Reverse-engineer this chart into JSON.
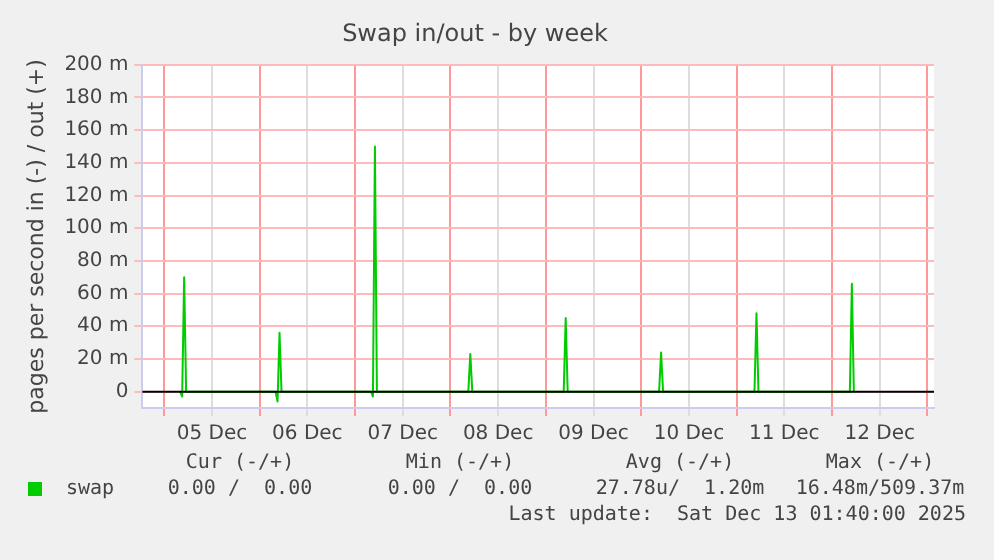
{
  "chart_data": {
    "type": "line",
    "title": "Swap in/out - by week",
    "ylabel": "pages per second in (-) / out (+)",
    "xlim": [
      "2025-12-04T18:30",
      "2025-12-13T01:40"
    ],
    "xticks": [
      {
        "value": "2025-12-05T00:00",
        "label": null
      },
      {
        "value": "2025-12-05T12:00",
        "label": "05 Dec"
      },
      {
        "value": "2025-12-06T00:00",
        "label": null
      },
      {
        "value": "2025-12-06T12:00",
        "label": "06 Dec"
      },
      {
        "value": "2025-12-07T00:00",
        "label": null
      },
      {
        "value": "2025-12-07T12:00",
        "label": "07 Dec"
      },
      {
        "value": "2025-12-08T00:00",
        "label": null
      },
      {
        "value": "2025-12-08T12:00",
        "label": "08 Dec"
      },
      {
        "value": "2025-12-09T00:00",
        "label": null
      },
      {
        "value": "2025-12-09T12:00",
        "label": "09 Dec"
      },
      {
        "value": "2025-12-10T00:00",
        "label": null
      },
      {
        "value": "2025-12-10T12:00",
        "label": "10 Dec"
      },
      {
        "value": "2025-12-11T00:00",
        "label": null
      },
      {
        "value": "2025-12-11T12:00",
        "label": "11 Dec"
      },
      {
        "value": "2025-12-12T00:00",
        "label": null
      },
      {
        "value": "2025-12-12T12:00",
        "label": "12 Dec"
      },
      {
        "value": "2025-12-13T00:00",
        "label": null
      }
    ],
    "ylim": [
      -10,
      200
    ],
    "yticks": [
      0,
      {
        "value": 20,
        "label": "20 m"
      },
      {
        "value": 40,
        "label": "40 m"
      },
      {
        "value": 60,
        "label": "60 m"
      },
      {
        "value": 80,
        "label": "80 m"
      },
      {
        "value": 100,
        "label": "100 m"
      },
      {
        "value": 120,
        "label": "120 m"
      },
      {
        "value": 140,
        "label": "140 m"
      },
      {
        "value": 160,
        "label": "160 m"
      },
      {
        "value": 180,
        "label": "180 m"
      },
      {
        "value": 200,
        "label": "200 m"
      }
    ],
    "grid": true,
    "legend": "bottom left",
    "marker": "none",
    "line_style": "solid",
    "ref_lines": [
      {
        "axis": "y",
        "value": 0,
        "color": "#000000"
      }
    ],
    "series": [
      {
        "name": "swap",
        "color": "#00cc00",
        "x": [
          "2025-12-05T04:00",
          "2025-12-05T04:30",
          "2025-12-05T05:00",
          "2025-12-05T05:30",
          "2025-12-06T04:00",
          "2025-12-06T04:30",
          "2025-12-06T05:00",
          "2025-12-06T05:30",
          "2025-12-07T04:00",
          "2025-12-07T04:30",
          "2025-12-07T05:00",
          "2025-12-07T05:30",
          "2025-12-08T04:30",
          "2025-12-08T05:00",
          "2025-12-08T05:30",
          "2025-12-09T04:30",
          "2025-12-09T05:00",
          "2025-12-09T05:30",
          "2025-12-10T04:30",
          "2025-12-10T05:00",
          "2025-12-10T05:30",
          "2025-12-11T04:30",
          "2025-12-11T05:00",
          "2025-12-11T05:30",
          "2025-12-12T04:30",
          "2025-12-12T05:00",
          "2025-12-12T05:30"
        ],
        "values": [
          0,
          -3,
          70,
          0,
          0,
          -6,
          36,
          0,
          0,
          -3,
          150,
          0,
          0,
          23,
          0,
          0,
          45,
          0,
          0,
          24,
          0,
          0,
          48,
          0,
          0,
          66,
          0
        ]
      }
    ],
    "annotations": [
      "Cur (-/+)",
      "Min (-/+)",
      "Avg (-/+)",
      "Max (-/+)",
      "0.00 /  0.00",
      "0.00 /  0.00",
      "27.78u/  1.20m",
      "16.48m/509.37m",
      "Last update:  Sat Dec 13 01:40:00 2025"
    ]
  }
}
